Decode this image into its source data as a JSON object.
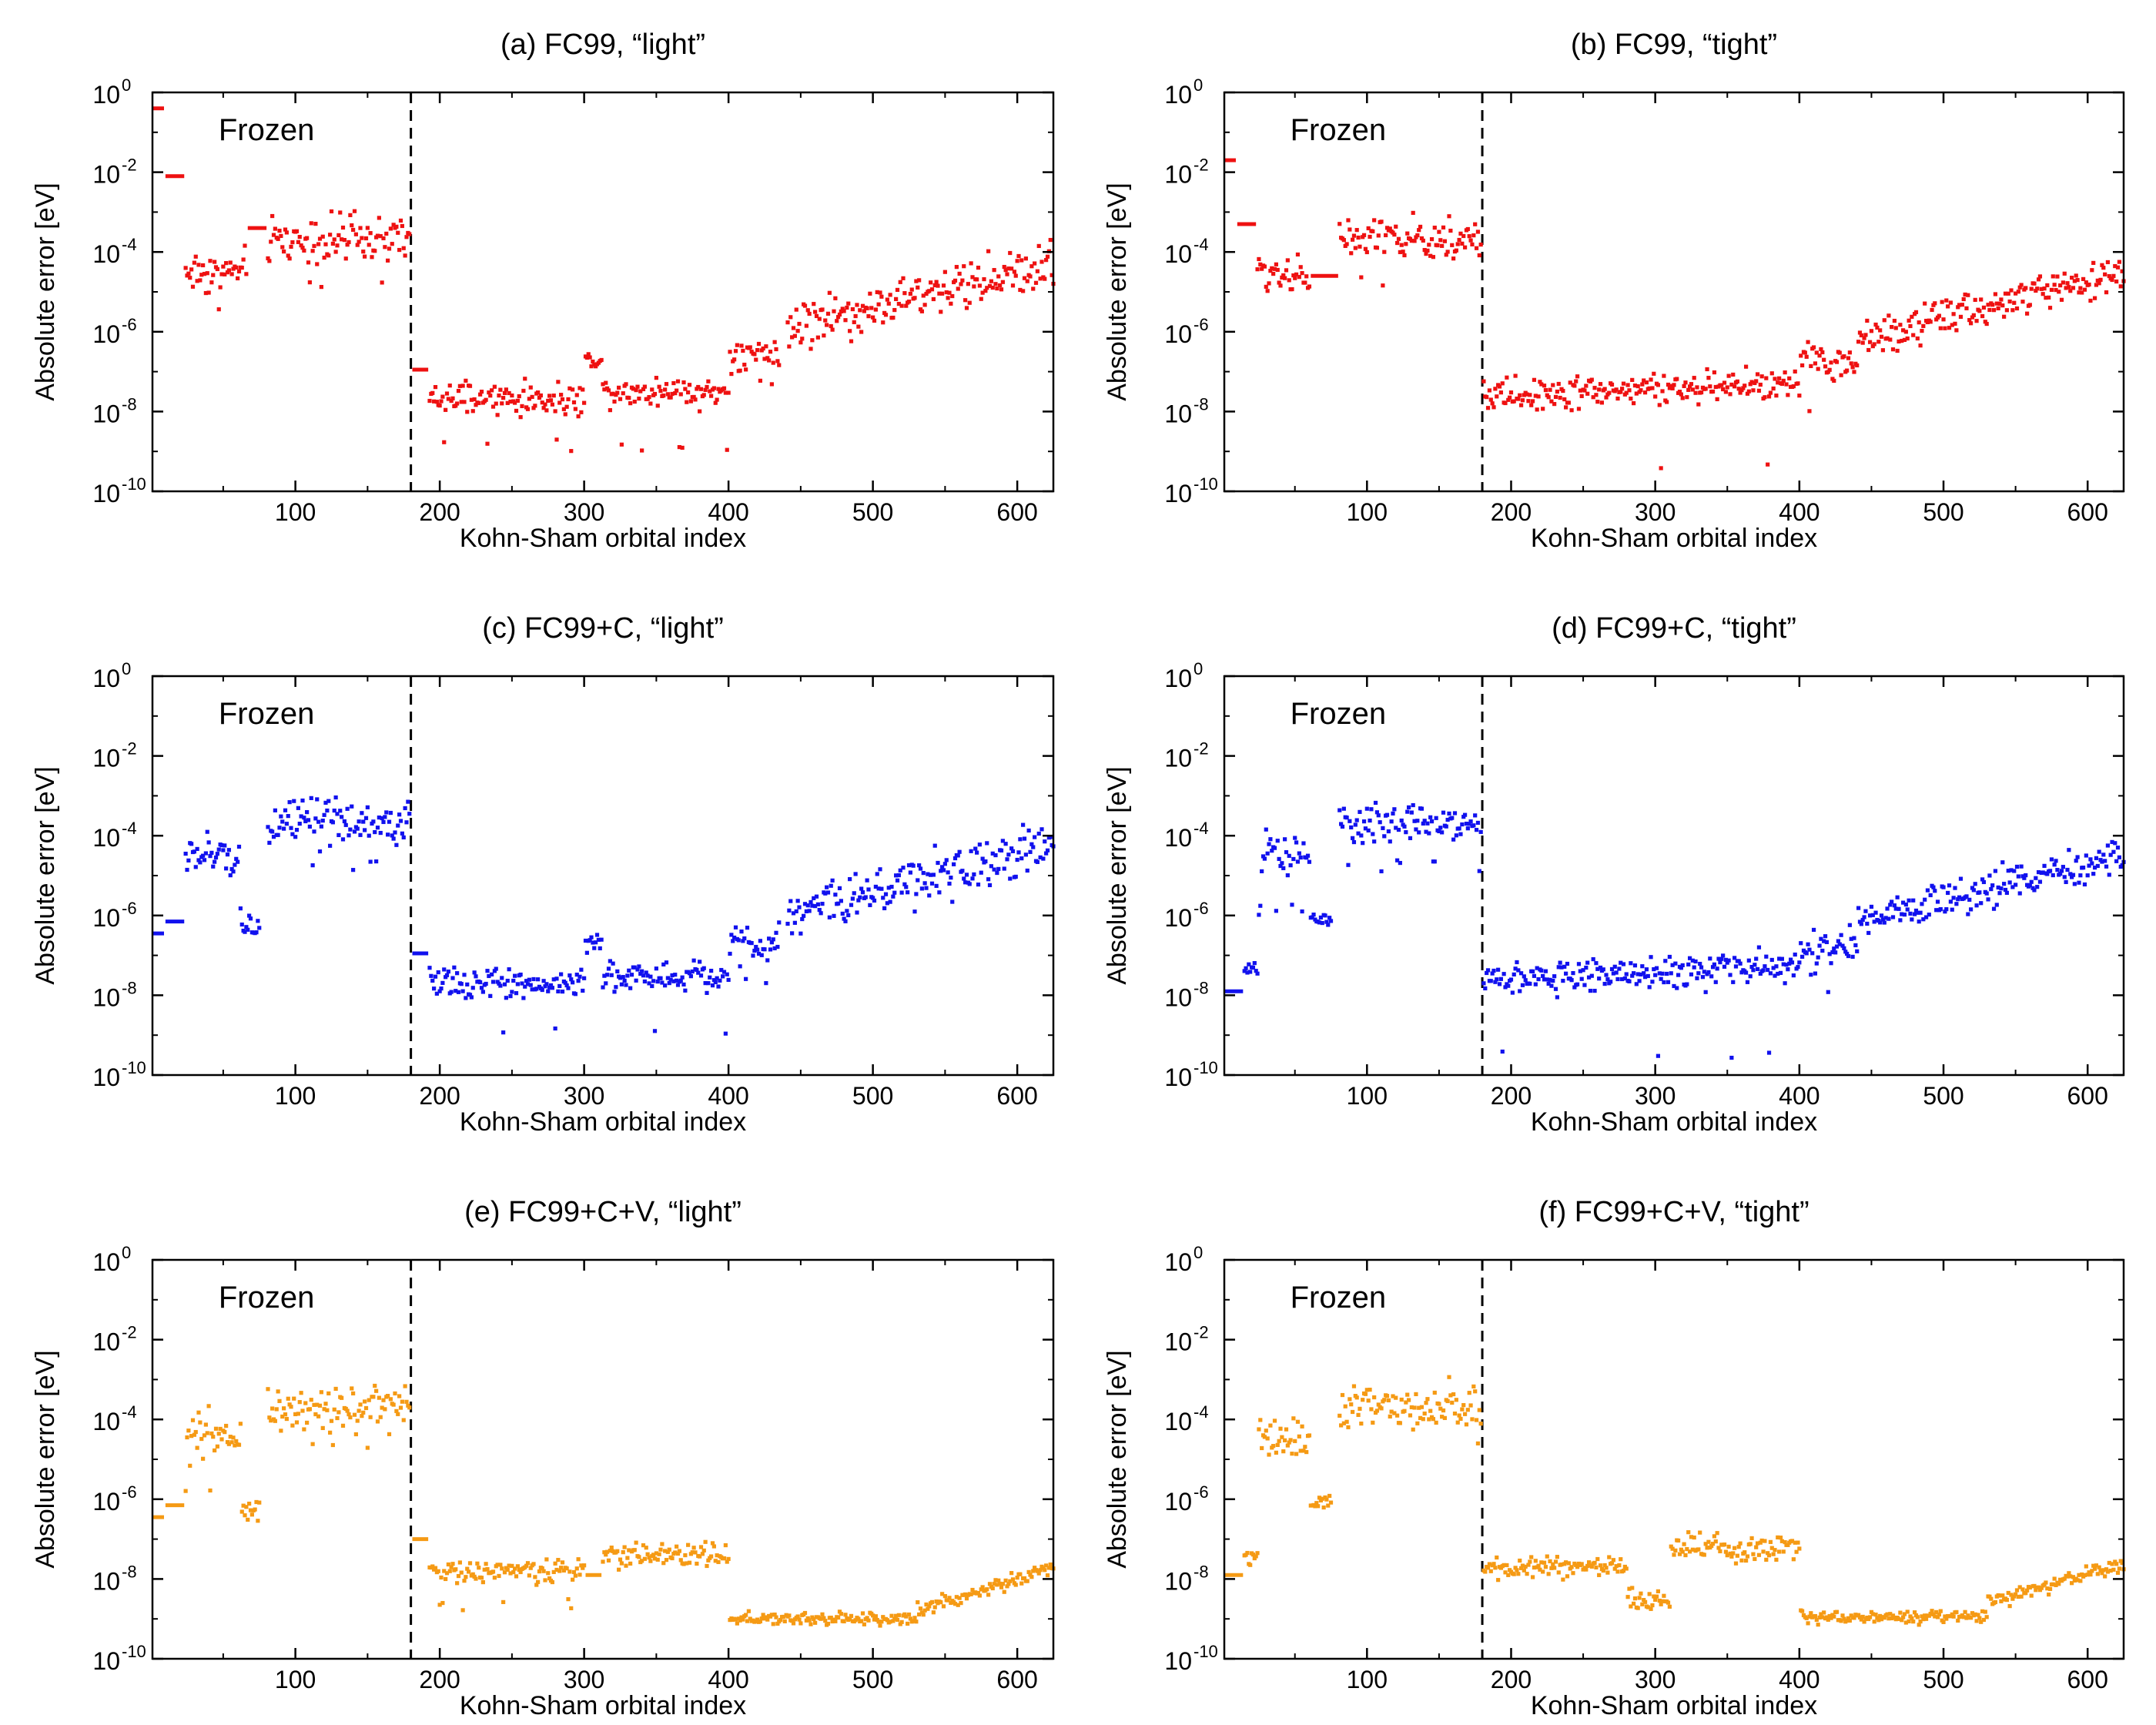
{
  "colors": {
    "red": "#ee1111",
    "blue": "#1111ee",
    "orange": "#f59a14",
    "axis": "#000000"
  },
  "chart_data": [
    {
      "type": "scatter",
      "id": "a",
      "title": "(a) FC99, “light”",
      "color": "red",
      "xlabel": "Kohn-Sham orbital index",
      "ylabel": "Absolute error [eV]",
      "xlim": [
        1,
        625
      ],
      "ylim_exp": [
        -10,
        0
      ],
      "xticks": [
        "100",
        "200",
        "300",
        "400",
        "500",
        "600"
      ],
      "yticks": [
        "10",
        "10",
        "10",
        "10",
        "10",
        "10"
      ],
      "yticks_exp": [
        "-10",
        "-8",
        "-6",
        "-4",
        "-2",
        "0"
      ],
      "annotation": "Frozen",
      "frozen_boundary": 180,
      "segments": [
        {
          "x0": 1,
          "x1": 9,
          "type": "flat",
          "value": -0.4
        },
        {
          "x0": 10,
          "x1": 23,
          "type": "flat",
          "value": -2.1
        },
        {
          "x0": 24,
          "x1": 66,
          "type": "scatter",
          "mean": -4.5,
          "spread": 0.45,
          "min": -5.6
        },
        {
          "x0": 67,
          "x1": 80,
          "type": "flat",
          "value": -3.4
        },
        {
          "x0": 81,
          "x1": 179,
          "type": "scatter",
          "mean": -3.7,
          "spread": 0.45,
          "min": -4.9,
          "max": -2.9
        },
        {
          "x0": 181,
          "x1": 192,
          "type": "flat",
          "value": -6.95
        },
        {
          "x0": 193,
          "x1": 300,
          "type": "scatter",
          "mean": -7.7,
          "spread": 0.3,
          "min": -9.0
        },
        {
          "x0": 301,
          "x1": 312,
          "type": "scatter",
          "mean": -6.7,
          "spread": 0.15
        },
        {
          "x0": 313,
          "x1": 400,
          "type": "scatter",
          "mean": -7.5,
          "spread": 0.3,
          "min": -9.0
        },
        {
          "x0": 401,
          "x1": 435,
          "type": "scatter",
          "mean": -6.7,
          "spread": 0.4,
          "min": -7.8
        },
        {
          "x0": 441,
          "x1": 625,
          "type": "ramp",
          "from": -5.9,
          "to": -4.3,
          "spread": 0.45
        }
      ]
    },
    {
      "type": "scatter",
      "id": "b",
      "title": "(b) FC99, “tight”",
      "color": "red",
      "xlabel": "Kohn-Sham orbital index",
      "ylabel": "Absolute error [eV]",
      "xlim": [
        1,
        625
      ],
      "ylim_exp": [
        -10,
        0
      ],
      "xticks": [
        "100",
        "200",
        "300",
        "400",
        "500",
        "600"
      ],
      "yticks": [
        "10",
        "10",
        "10",
        "10",
        "10",
        "10"
      ],
      "yticks_exp": [
        "-10",
        "-8",
        "-6",
        "-4",
        "-2",
        "0"
      ],
      "annotation": "Frozen",
      "frozen_boundary": 180,
      "segments": [
        {
          "x0": 1,
          "x1": 9,
          "type": "flat",
          "value": -1.7
        },
        {
          "x0": 10,
          "x1": 23,
          "type": "flat",
          "value": -3.3
        },
        {
          "x0": 24,
          "x1": 60,
          "type": "scatter",
          "mean": -4.5,
          "spread": 0.4,
          "min": -6.2
        },
        {
          "x0": 61,
          "x1": 80,
          "type": "flat",
          "value": -4.6
        },
        {
          "x0": 81,
          "x1": 179,
          "type": "scatter",
          "mean": -3.7,
          "spread": 0.4,
          "min": -4.9,
          "max": -2.9
        },
        {
          "x0": 181,
          "x1": 400,
          "type": "ramp",
          "from": -7.6,
          "to": -7.3,
          "spread": 0.3,
          "min": -9.6
        },
        {
          "x0": 401,
          "x1": 440,
          "type": "scatter",
          "mean": -6.8,
          "spread": 0.4,
          "min": -8.2
        },
        {
          "x0": 441,
          "x1": 625,
          "type": "ramp",
          "from": -6.2,
          "to": -4.5,
          "spread": 0.35
        }
      ]
    },
    {
      "type": "scatter",
      "id": "c",
      "title": "(c) FC99+C, “light”",
      "color": "blue",
      "xlabel": "Kohn-Sham orbital index",
      "ylabel": "Absolute error [eV]",
      "xlim": [
        1,
        625
      ],
      "ylim_exp": [
        -10,
        0
      ],
      "xticks": [
        "100",
        "200",
        "300",
        "400",
        "500",
        "600"
      ],
      "yticks": [
        "10",
        "10",
        "10",
        "10",
        "10",
        "10"
      ],
      "yticks_exp": [
        "-10",
        "-8",
        "-6",
        "-4",
        "-2",
        "0"
      ],
      "annotation": "Frozen",
      "frozen_boundary": 180,
      "segments": [
        {
          "x0": 1,
          "x1": 9,
          "type": "flat",
          "value": -6.45
        },
        {
          "x0": 10,
          "x1": 23,
          "type": "flat",
          "value": -6.15
        },
        {
          "x0": 24,
          "x1": 62,
          "type": "scatter",
          "mean": -4.5,
          "spread": 0.45,
          "min": -5.9
        },
        {
          "x0": 63,
          "x1": 75,
          "type": "scatter",
          "mean": -6.3,
          "spread": 0.2
        },
        {
          "x0": 81,
          "x1": 179,
          "type": "scatter",
          "mean": -3.7,
          "spread": 0.45,
          "min": -4.9,
          "max": -2.9
        },
        {
          "x0": 181,
          "x1": 192,
          "type": "flat",
          "value": -6.95
        },
        {
          "x0": 193,
          "x1": 300,
          "type": "scatter",
          "mean": -7.7,
          "spread": 0.3,
          "min": -9.0
        },
        {
          "x0": 301,
          "x1": 312,
          "type": "scatter",
          "mean": -6.7,
          "spread": 0.15
        },
        {
          "x0": 313,
          "x1": 400,
          "type": "scatter",
          "mean": -7.5,
          "spread": 0.3,
          "min": -9.0
        },
        {
          "x0": 401,
          "x1": 435,
          "type": "scatter",
          "mean": -6.7,
          "spread": 0.4,
          "min": -7.8
        },
        {
          "x0": 441,
          "x1": 625,
          "type": "ramp",
          "from": -5.9,
          "to": -4.3,
          "spread": 0.45
        }
      ]
    },
    {
      "type": "scatter",
      "id": "d",
      "title": "(d) FC99+C, “tight”",
      "color": "blue",
      "xlabel": "Kohn-Sham orbital index",
      "ylabel": "Absolute error [eV]",
      "xlim": [
        1,
        625
      ],
      "ylim_exp": [
        -10,
        0
      ],
      "xticks": [
        "100",
        "200",
        "300",
        "400",
        "500",
        "600"
      ],
      "yticks": [
        "10",
        "10",
        "10",
        "10",
        "10",
        "10"
      ],
      "yticks_exp": [
        "-10",
        "-8",
        "-6",
        "-4",
        "-2",
        "0"
      ],
      "annotation": "Frozen",
      "frozen_boundary": 180,
      "segments": [
        {
          "x0": 1,
          "x1": 14,
          "type": "flat",
          "value": -7.9
        },
        {
          "x0": 15,
          "x1": 24,
          "type": "scatter",
          "mean": -7.4,
          "spread": 0.15
        },
        {
          "x0": 25,
          "x1": 60,
          "type": "scatter",
          "mean": -4.5,
          "spread": 0.4,
          "min": -6.0
        },
        {
          "x0": 61,
          "x1": 75,
          "type": "scatter",
          "mean": -6.1,
          "spread": 0.15
        },
        {
          "x0": 81,
          "x1": 179,
          "type": "scatter",
          "mean": -3.7,
          "spread": 0.4,
          "min": -4.9,
          "max": -2.9
        },
        {
          "x0": 181,
          "x1": 400,
          "type": "ramp",
          "from": -7.6,
          "to": -7.3,
          "spread": 0.3,
          "min": -9.6
        },
        {
          "x0": 401,
          "x1": 440,
          "type": "scatter",
          "mean": -6.8,
          "spread": 0.4,
          "min": -8.2
        },
        {
          "x0": 441,
          "x1": 625,
          "type": "ramp",
          "from": -6.2,
          "to": -4.5,
          "spread": 0.35
        }
      ]
    },
    {
      "type": "scatter",
      "id": "e",
      "title": "(e) FC99+C+V, “light”",
      "color": "orange",
      "xlabel": "Kohn-Sham orbital index",
      "ylabel": "Absolute error [eV]",
      "xlim": [
        1,
        625
      ],
      "ylim_exp": [
        -10,
        0
      ],
      "xticks": [
        "100",
        "200",
        "300",
        "400",
        "500",
        "600"
      ],
      "yticks": [
        "10",
        "10",
        "10",
        "10",
        "10",
        "10"
      ],
      "yticks_exp": [
        "-10",
        "-8",
        "-6",
        "-4",
        "-2",
        "0"
      ],
      "annotation": "Frozen",
      "frozen_boundary": 180,
      "segments": [
        {
          "x0": 1,
          "x1": 9,
          "type": "flat",
          "value": -6.45
        },
        {
          "x0": 10,
          "x1": 23,
          "type": "flat",
          "value": -6.15
        },
        {
          "x0": 24,
          "x1": 62,
          "type": "scatter",
          "mean": -4.5,
          "spread": 0.45,
          "min": -5.9
        },
        {
          "x0": 63,
          "x1": 75,
          "type": "scatter",
          "mean": -6.3,
          "spread": 0.2
        },
        {
          "x0": 81,
          "x1": 179,
          "type": "scatter",
          "mean": -3.7,
          "spread": 0.45,
          "min": -4.9,
          "max": -2.9
        },
        {
          "x0": 181,
          "x1": 192,
          "type": "flat",
          "value": -7.0
        },
        {
          "x0": 193,
          "x1": 300,
          "type": "scatter",
          "mean": -7.8,
          "spread": 0.2,
          "min": -8.8
        },
        {
          "x0": 301,
          "x1": 312,
          "type": "flat",
          "value": -7.9
        },
        {
          "x0": 313,
          "x1": 400,
          "type": "scatter",
          "mean": -7.4,
          "spread": 0.25
        },
        {
          "x0": 401,
          "x1": 530,
          "type": "scatter",
          "mean": -9.0,
          "spread": 0.12
        },
        {
          "x0": 531,
          "x1": 625,
          "type": "ramp",
          "from": -8.8,
          "to": -7.7,
          "spread": 0.15
        }
      ]
    },
    {
      "type": "scatter",
      "id": "f",
      "title": "(f) FC99+C+V, “tight”",
      "color": "orange",
      "xlabel": "Kohn-Sham orbital index",
      "ylabel": "Absolute error [eV]",
      "xlim": [
        1,
        625
      ],
      "ylim_exp": [
        -10,
        0
      ],
      "xticks": [
        "100",
        "200",
        "300",
        "400",
        "500",
        "600"
      ],
      "yticks": [
        "10",
        "10",
        "10",
        "10",
        "10",
        "10"
      ],
      "yticks_exp": [
        "-10",
        "-8",
        "-6",
        "-4",
        "-2",
        "0"
      ],
      "annotation": "Frozen",
      "frozen_boundary": 180,
      "segments": [
        {
          "x0": 1,
          "x1": 14,
          "type": "flat",
          "value": -7.9
        },
        {
          "x0": 15,
          "x1": 24,
          "type": "scatter",
          "mean": -7.4,
          "spread": 0.15
        },
        {
          "x0": 25,
          "x1": 60,
          "type": "scatter",
          "mean": -4.5,
          "spread": 0.4,
          "min": -6.0
        },
        {
          "x0": 61,
          "x1": 75,
          "type": "scatter",
          "mean": -6.1,
          "spread": 0.15
        },
        {
          "x0": 81,
          "x1": 179,
          "type": "scatter",
          "mean": -3.7,
          "spread": 0.4,
          "min": -4.9,
          "max": -2.9
        },
        {
          "x0": 181,
          "x1": 280,
          "type": "scatter",
          "mean": -7.7,
          "spread": 0.2
        },
        {
          "x0": 281,
          "x1": 310,
          "type": "scatter",
          "mean": -8.5,
          "spread": 0.25
        },
        {
          "x0": 311,
          "x1": 400,
          "type": "scatter",
          "mean": -7.2,
          "spread": 0.25
        },
        {
          "x0": 401,
          "x1": 530,
          "type": "scatter",
          "mean": -8.95,
          "spread": 0.12
        },
        {
          "x0": 531,
          "x1": 625,
          "type": "ramp",
          "from": -8.6,
          "to": -7.6,
          "spread": 0.15
        }
      ]
    }
  ]
}
